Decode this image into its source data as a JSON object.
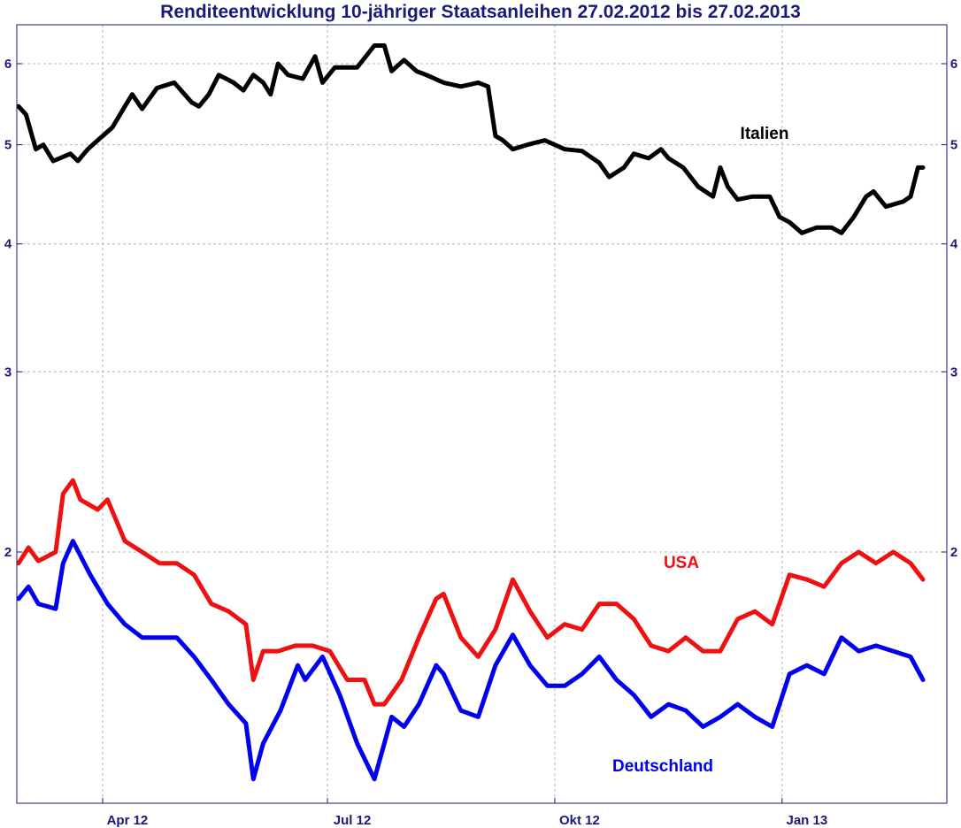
{
  "chart_data": {
    "type": "line",
    "title": "Renditeentwicklung 10-jähriger Staatsanleihen 27.02.2012 bis 27.02.2013",
    "xlabel": "",
    "ylabel": "",
    "y_scale": "log",
    "ylim": [
      1.25,
      6.4
    ],
    "xlim": [
      "2012-02-27",
      "2013-02-27"
    ],
    "x_ticks": [
      {
        "date": "2012-04-01",
        "label": "Apr 12"
      },
      {
        "date": "2012-07-01",
        "label": "Jul 12"
      },
      {
        "date": "2012-10-01",
        "label": "Okt 12"
      },
      {
        "date": "2013-01-01",
        "label": "Jan 13"
      }
    ],
    "y_ticks": [
      {
        "value": 2,
        "label": "2"
      },
      {
        "value": 3,
        "label": "3"
      },
      {
        "value": 4,
        "label": "4"
      },
      {
        "value": 5,
        "label": "5"
      },
      {
        "value": 6,
        "label": "6"
      }
    ],
    "grid": true,
    "series": [
      {
        "name": "Italien",
        "color": "#000000",
        "points": [
          [
            "2012-02-27",
            5.45
          ],
          [
            "2012-03-01",
            5.35
          ],
          [
            "2012-03-05",
            4.95
          ],
          [
            "2012-03-08",
            5.0
          ],
          [
            "2012-03-12",
            4.82
          ],
          [
            "2012-03-19",
            4.9
          ],
          [
            "2012-03-22",
            4.82
          ],
          [
            "2012-03-26",
            4.95
          ],
          [
            "2012-03-30",
            5.05
          ],
          [
            "2012-04-05",
            5.2
          ],
          [
            "2012-04-10",
            5.45
          ],
          [
            "2012-04-13",
            5.6
          ],
          [
            "2012-04-17",
            5.42
          ],
          [
            "2012-04-23",
            5.68
          ],
          [
            "2012-04-30",
            5.75
          ],
          [
            "2012-05-07",
            5.5
          ],
          [
            "2012-05-10",
            5.45
          ],
          [
            "2012-05-14",
            5.6
          ],
          [
            "2012-05-18",
            5.85
          ],
          [
            "2012-05-24",
            5.75
          ],
          [
            "2012-05-28",
            5.65
          ],
          [
            "2012-06-01",
            5.85
          ],
          [
            "2012-06-05",
            5.75
          ],
          [
            "2012-06-08",
            5.6
          ],
          [
            "2012-06-11",
            6.0
          ],
          [
            "2012-06-15",
            5.85
          ],
          [
            "2012-06-21",
            5.8
          ],
          [
            "2012-06-26",
            6.1
          ],
          [
            "2012-06-29",
            5.75
          ],
          [
            "2012-07-04",
            5.95
          ],
          [
            "2012-07-09",
            5.95
          ],
          [
            "2012-07-13",
            5.95
          ],
          [
            "2012-07-20",
            6.25
          ],
          [
            "2012-07-24",
            6.25
          ],
          [
            "2012-07-27",
            5.9
          ],
          [
            "2012-08-01",
            6.05
          ],
          [
            "2012-08-06",
            5.9
          ],
          [
            "2012-08-10",
            5.85
          ],
          [
            "2012-08-17",
            5.75
          ],
          [
            "2012-08-24",
            5.7
          ],
          [
            "2012-08-31",
            5.75
          ],
          [
            "2012-09-04",
            5.7
          ],
          [
            "2012-09-07",
            5.1
          ],
          [
            "2012-09-10",
            5.05
          ],
          [
            "2012-09-14",
            4.95
          ],
          [
            "2012-09-20",
            5.0
          ],
          [
            "2012-09-27",
            5.05
          ],
          [
            "2012-10-01",
            5.0
          ],
          [
            "2012-10-05",
            4.95
          ],
          [
            "2012-10-12",
            4.93
          ],
          [
            "2012-10-19",
            4.8
          ],
          [
            "2012-10-23",
            4.65
          ],
          [
            "2012-10-29",
            4.75
          ],
          [
            "2012-11-02",
            4.9
          ],
          [
            "2012-11-08",
            4.85
          ],
          [
            "2012-11-13",
            4.95
          ],
          [
            "2012-11-16",
            4.85
          ],
          [
            "2012-11-22",
            4.75
          ],
          [
            "2012-11-28",
            4.55
          ],
          [
            "2012-12-04",
            4.45
          ],
          [
            "2012-12-07",
            4.75
          ],
          [
            "2012-12-10",
            4.55
          ],
          [
            "2012-12-14",
            4.42
          ],
          [
            "2012-12-20",
            4.45
          ],
          [
            "2012-12-27",
            4.45
          ],
          [
            "2012-12-31",
            4.25
          ],
          [
            "2013-01-04",
            4.2
          ],
          [
            "2013-01-09",
            4.1
          ],
          [
            "2013-01-15",
            4.15
          ],
          [
            "2013-01-21",
            4.15
          ],
          [
            "2013-01-25",
            4.1
          ],
          [
            "2013-01-30",
            4.25
          ],
          [
            "2013-02-04",
            4.45
          ],
          [
            "2013-02-07",
            4.5
          ],
          [
            "2013-02-12",
            4.35
          ],
          [
            "2013-02-19",
            4.4
          ],
          [
            "2013-02-22",
            4.45
          ],
          [
            "2013-02-25",
            4.75
          ],
          [
            "2013-02-27",
            4.75
          ]
        ]
      },
      {
        "name": "USA",
        "color": "#ee1111",
        "points": [
          [
            "2012-02-27",
            1.95
          ],
          [
            "2012-03-02",
            2.02
          ],
          [
            "2012-03-06",
            1.96
          ],
          [
            "2012-03-13",
            2.0
          ],
          [
            "2012-03-16",
            2.28
          ],
          [
            "2012-03-20",
            2.35
          ],
          [
            "2012-03-23",
            2.25
          ],
          [
            "2012-03-30",
            2.2
          ],
          [
            "2012-04-03",
            2.25
          ],
          [
            "2012-04-10",
            2.05
          ],
          [
            "2012-04-17",
            2.0
          ],
          [
            "2012-04-24",
            1.95
          ],
          [
            "2012-05-01",
            1.95
          ],
          [
            "2012-05-08",
            1.9
          ],
          [
            "2012-05-15",
            1.78
          ],
          [
            "2012-05-22",
            1.75
          ],
          [
            "2012-05-29",
            1.7
          ],
          [
            "2012-06-01",
            1.5
          ],
          [
            "2012-06-05",
            1.6
          ],
          [
            "2012-06-11",
            1.6
          ],
          [
            "2012-06-18",
            1.62
          ],
          [
            "2012-06-25",
            1.62
          ],
          [
            "2012-07-02",
            1.6
          ],
          [
            "2012-07-09",
            1.5
          ],
          [
            "2012-07-16",
            1.5
          ],
          [
            "2012-07-20",
            1.42
          ],
          [
            "2012-07-24",
            1.42
          ],
          [
            "2012-07-31",
            1.5
          ],
          [
            "2012-08-07",
            1.65
          ],
          [
            "2012-08-14",
            1.8
          ],
          [
            "2012-08-17",
            1.82
          ],
          [
            "2012-08-24",
            1.65
          ],
          [
            "2012-08-31",
            1.58
          ],
          [
            "2012-09-07",
            1.68
          ],
          [
            "2012-09-14",
            1.88
          ],
          [
            "2012-09-21",
            1.75
          ],
          [
            "2012-09-28",
            1.65
          ],
          [
            "2012-10-05",
            1.7
          ],
          [
            "2012-10-12",
            1.68
          ],
          [
            "2012-10-19",
            1.78
          ],
          [
            "2012-10-26",
            1.78
          ],
          [
            "2012-11-02",
            1.72
          ],
          [
            "2012-11-09",
            1.62
          ],
          [
            "2012-11-16",
            1.6
          ],
          [
            "2012-11-23",
            1.65
          ],
          [
            "2012-11-30",
            1.6
          ],
          [
            "2012-12-07",
            1.6
          ],
          [
            "2012-12-14",
            1.72
          ],
          [
            "2012-12-21",
            1.75
          ],
          [
            "2012-12-28",
            1.7
          ],
          [
            "2013-01-04",
            1.9
          ],
          [
            "2013-01-11",
            1.88
          ],
          [
            "2013-01-18",
            1.85
          ],
          [
            "2013-01-25",
            1.95
          ],
          [
            "2013-02-01",
            2.0
          ],
          [
            "2013-02-08",
            1.95
          ],
          [
            "2013-02-15",
            2.0
          ],
          [
            "2013-02-22",
            1.95
          ],
          [
            "2013-02-27",
            1.88
          ]
        ]
      },
      {
        "name": "Deutschland",
        "color": "#0000ee",
        "points": [
          [
            "2012-02-27",
            1.8
          ],
          [
            "2012-03-02",
            1.85
          ],
          [
            "2012-03-06",
            1.78
          ],
          [
            "2012-03-13",
            1.76
          ],
          [
            "2012-03-16",
            1.95
          ],
          [
            "2012-03-20",
            2.05
          ],
          [
            "2012-03-27",
            1.9
          ],
          [
            "2012-04-03",
            1.78
          ],
          [
            "2012-04-10",
            1.7
          ],
          [
            "2012-04-17",
            1.65
          ],
          [
            "2012-04-24",
            1.65
          ],
          [
            "2012-05-01",
            1.65
          ],
          [
            "2012-05-08",
            1.58
          ],
          [
            "2012-05-15",
            1.5
          ],
          [
            "2012-05-22",
            1.42
          ],
          [
            "2012-05-29",
            1.36
          ],
          [
            "2012-06-01",
            1.2
          ],
          [
            "2012-06-05",
            1.3
          ],
          [
            "2012-06-12",
            1.4
          ],
          [
            "2012-06-19",
            1.55
          ],
          [
            "2012-06-22",
            1.5
          ],
          [
            "2012-06-29",
            1.58
          ],
          [
            "2012-07-06",
            1.45
          ],
          [
            "2012-07-13",
            1.3
          ],
          [
            "2012-07-20",
            1.2
          ],
          [
            "2012-07-24",
            1.3
          ],
          [
            "2012-07-27",
            1.38
          ],
          [
            "2012-08-01",
            1.35
          ],
          [
            "2012-08-07",
            1.42
          ],
          [
            "2012-08-14",
            1.55
          ],
          [
            "2012-08-17",
            1.52
          ],
          [
            "2012-08-24",
            1.4
          ],
          [
            "2012-08-31",
            1.38
          ],
          [
            "2012-09-07",
            1.55
          ],
          [
            "2012-09-14",
            1.66
          ],
          [
            "2012-09-21",
            1.55
          ],
          [
            "2012-09-28",
            1.48
          ],
          [
            "2012-10-05",
            1.48
          ],
          [
            "2012-10-12",
            1.52
          ],
          [
            "2012-10-19",
            1.58
          ],
          [
            "2012-10-26",
            1.5
          ],
          [
            "2012-11-02",
            1.45
          ],
          [
            "2012-11-09",
            1.38
          ],
          [
            "2012-11-16",
            1.42
          ],
          [
            "2012-11-23",
            1.4
          ],
          [
            "2012-11-30",
            1.35
          ],
          [
            "2012-12-07",
            1.38
          ],
          [
            "2012-12-14",
            1.42
          ],
          [
            "2012-12-21",
            1.38
          ],
          [
            "2012-12-28",
            1.35
          ],
          [
            "2013-01-04",
            1.52
          ],
          [
            "2013-01-11",
            1.55
          ],
          [
            "2013-01-18",
            1.52
          ],
          [
            "2013-01-25",
            1.65
          ],
          [
            "2013-02-01",
            1.6
          ],
          [
            "2013-02-08",
            1.62
          ],
          [
            "2013-02-15",
            1.6
          ],
          [
            "2013-02-22",
            1.58
          ],
          [
            "2013-02-27",
            1.5
          ]
        ]
      }
    ]
  }
}
